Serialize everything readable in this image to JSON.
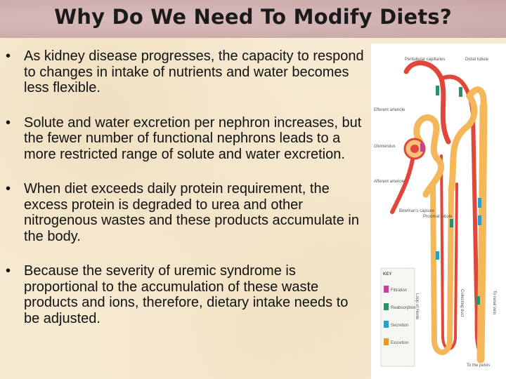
{
  "slide": {
    "title": "Why Do We Need To Modify Diets?",
    "bullet_symbol": "•",
    "bullets": [
      "As kidney disease progresses, the capacity to respond to changes in intake of nutrients and water becomes less flexible.",
      "Solute and water excretion per nephron increases, but the fewer number of functional nephrons leads to a more restricted range of solute and water excretion.",
      "When diet exceeds daily protein requirement, the excess protein is degraded to urea and other nitrogenous wastes and these products accumulate in the body.",
      "Because the severity of uremic syndrome is proportional to the accumulation of these waste products and ions, therefore, dietary intake needs to be adjusted."
    ]
  },
  "figure": {
    "labels": {
      "peritubular": "Peritubular capillaries",
      "distal": "Distal tubule",
      "efferent": "Efferent arteriole",
      "glomerulus": "Glomerulus",
      "afferent": "Afferent arteriole",
      "bowman": "Bowman's capsule",
      "proximal": "Proximal tubule",
      "loop": "Loop of Henle",
      "collecting": "Collecting duct",
      "to_renal": "To renal vein",
      "to_pelvis": "To the pelvis",
      "key": "KEY",
      "key1": "Filtration",
      "key2": "Reabsorption",
      "key3": "Secretion",
      "key4": "Excretion"
    },
    "colors": {
      "tubule": "#f4b85a",
      "vessel": "#e0473a",
      "key_filtration": "#c0449a",
      "key_reabsorption": "#2f8f6a",
      "key_secretion": "#2aa0c8",
      "key_excretion": "#e49a2a"
    }
  }
}
